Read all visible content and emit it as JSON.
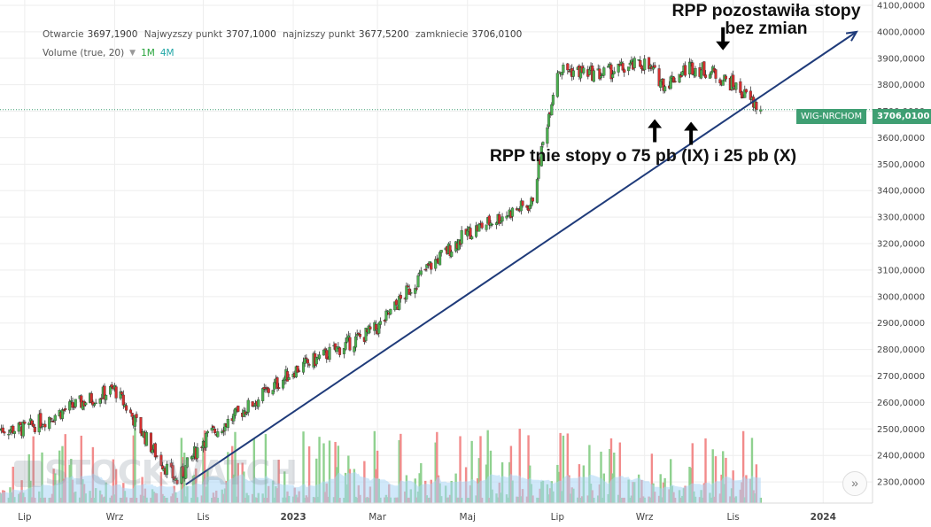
{
  "legend": {
    "open_label": "Otwarcie",
    "open_value": "3697,1900",
    "high_label": "Najwyzszy punkt",
    "high_value": "3707,1000",
    "low_label": "najnizszy punkt",
    "low_value": "3677,5200",
    "close_label": "zamkniecie",
    "close_value": "3706,0100",
    "volume_label": "Volume (true, 20)",
    "volume_buttons": [
      "1M",
      "4M"
    ]
  },
  "watermark": "STOCKWATCH",
  "annotations": {
    "hold": "RPP pozostawiła stopy bez zmian",
    "cut": "RPP tnie stopy o 75 pb (IX) i 25 pb (X)"
  },
  "price_tag": {
    "name": "WIG-NRCHOM",
    "price": "3706,0100"
  },
  "icons": {
    "replay": "double-chevron-right-icon",
    "logo": "stockwatch-logo-icon"
  },
  "colors": {
    "up": "#4caf50",
    "down": "#d32f2f",
    "wick": "#333333",
    "vol_up": "#8fd18f",
    "vol_down": "#f28b8b",
    "vol_ma": "#a9d6f5",
    "trend": "#1f3b7a",
    "price_line": "#3f9f73"
  },
  "chart_data": {
    "type": "candlestick",
    "title": "",
    "y_axis": {
      "ticks": [
        "2300,0000",
        "2400,0000",
        "2500,0000",
        "2600,0000",
        "2700,0000",
        "2800,0000",
        "2900,0000",
        "3000,0000",
        "3100,0000",
        "3200,0000",
        "3300,0000",
        "3400,0000",
        "3500,0000",
        "3600,0000",
        "3700,0000",
        "3800,0000",
        "3900,0000",
        "4000,0000",
        "4100,0000"
      ],
      "tick_values": [
        2300,
        2400,
        2500,
        2600,
        2700,
        2800,
        2900,
        3000,
        3100,
        3200,
        3300,
        3400,
        3500,
        3600,
        3700,
        3800,
        3900,
        4000,
        4100
      ],
      "range": [
        2220,
        4120
      ]
    },
    "x_axis": {
      "labels": [
        "Lip",
        "Wrz",
        "Lis",
        "2023",
        "Mar",
        "Maj",
        "Lip",
        "Wrz",
        "Lis",
        "2024"
      ],
      "range": [
        "2022-06-14",
        "2024-02-05"
      ]
    },
    "grid": true,
    "last_close": 3706.01,
    "x_anchor_dates": [
      "2022-07-01",
      "2022-08-01",
      "2022-09-01",
      "2022-09-15",
      "2022-09-30",
      "2022-10-14",
      "2022-11-01",
      "2022-12-01",
      "2023-01-02",
      "2023-02-01",
      "2023-03-01",
      "2023-04-03",
      "2023-05-02",
      "2023-06-01",
      "2023-06-15",
      "2023-07-03",
      "2023-08-01",
      "2023-09-01",
      "2023-09-15",
      "2023-10-02",
      "2023-10-16",
      "2023-11-01",
      "2023-11-20"
    ],
    "price_anchors": [
      2500,
      2580,
      2650,
      2530,
      2400,
      2300,
      2460,
      2580,
      2720,
      2800,
      2880,
      3100,
      3240,
      3320,
      3350,
      3860,
      3840,
      3880,
      3800,
      3870,
      3850,
      3800,
      3706
    ],
    "trendline": {
      "start": {
        "date": "2022-10-20",
        "value": 2290
      },
      "end": {
        "date": "2024-01-25",
        "value": 4000
      }
    },
    "arrows": [
      {
        "direction": "down",
        "date": "2023-10-25",
        "value": 3930
      },
      {
        "direction": "up",
        "date": "2023-09-08",
        "value": 3670
      },
      {
        "direction": "up",
        "date": "2023-10-03",
        "value": 3660
      }
    ],
    "volume_ma_series": "Volume MA (20)"
  }
}
